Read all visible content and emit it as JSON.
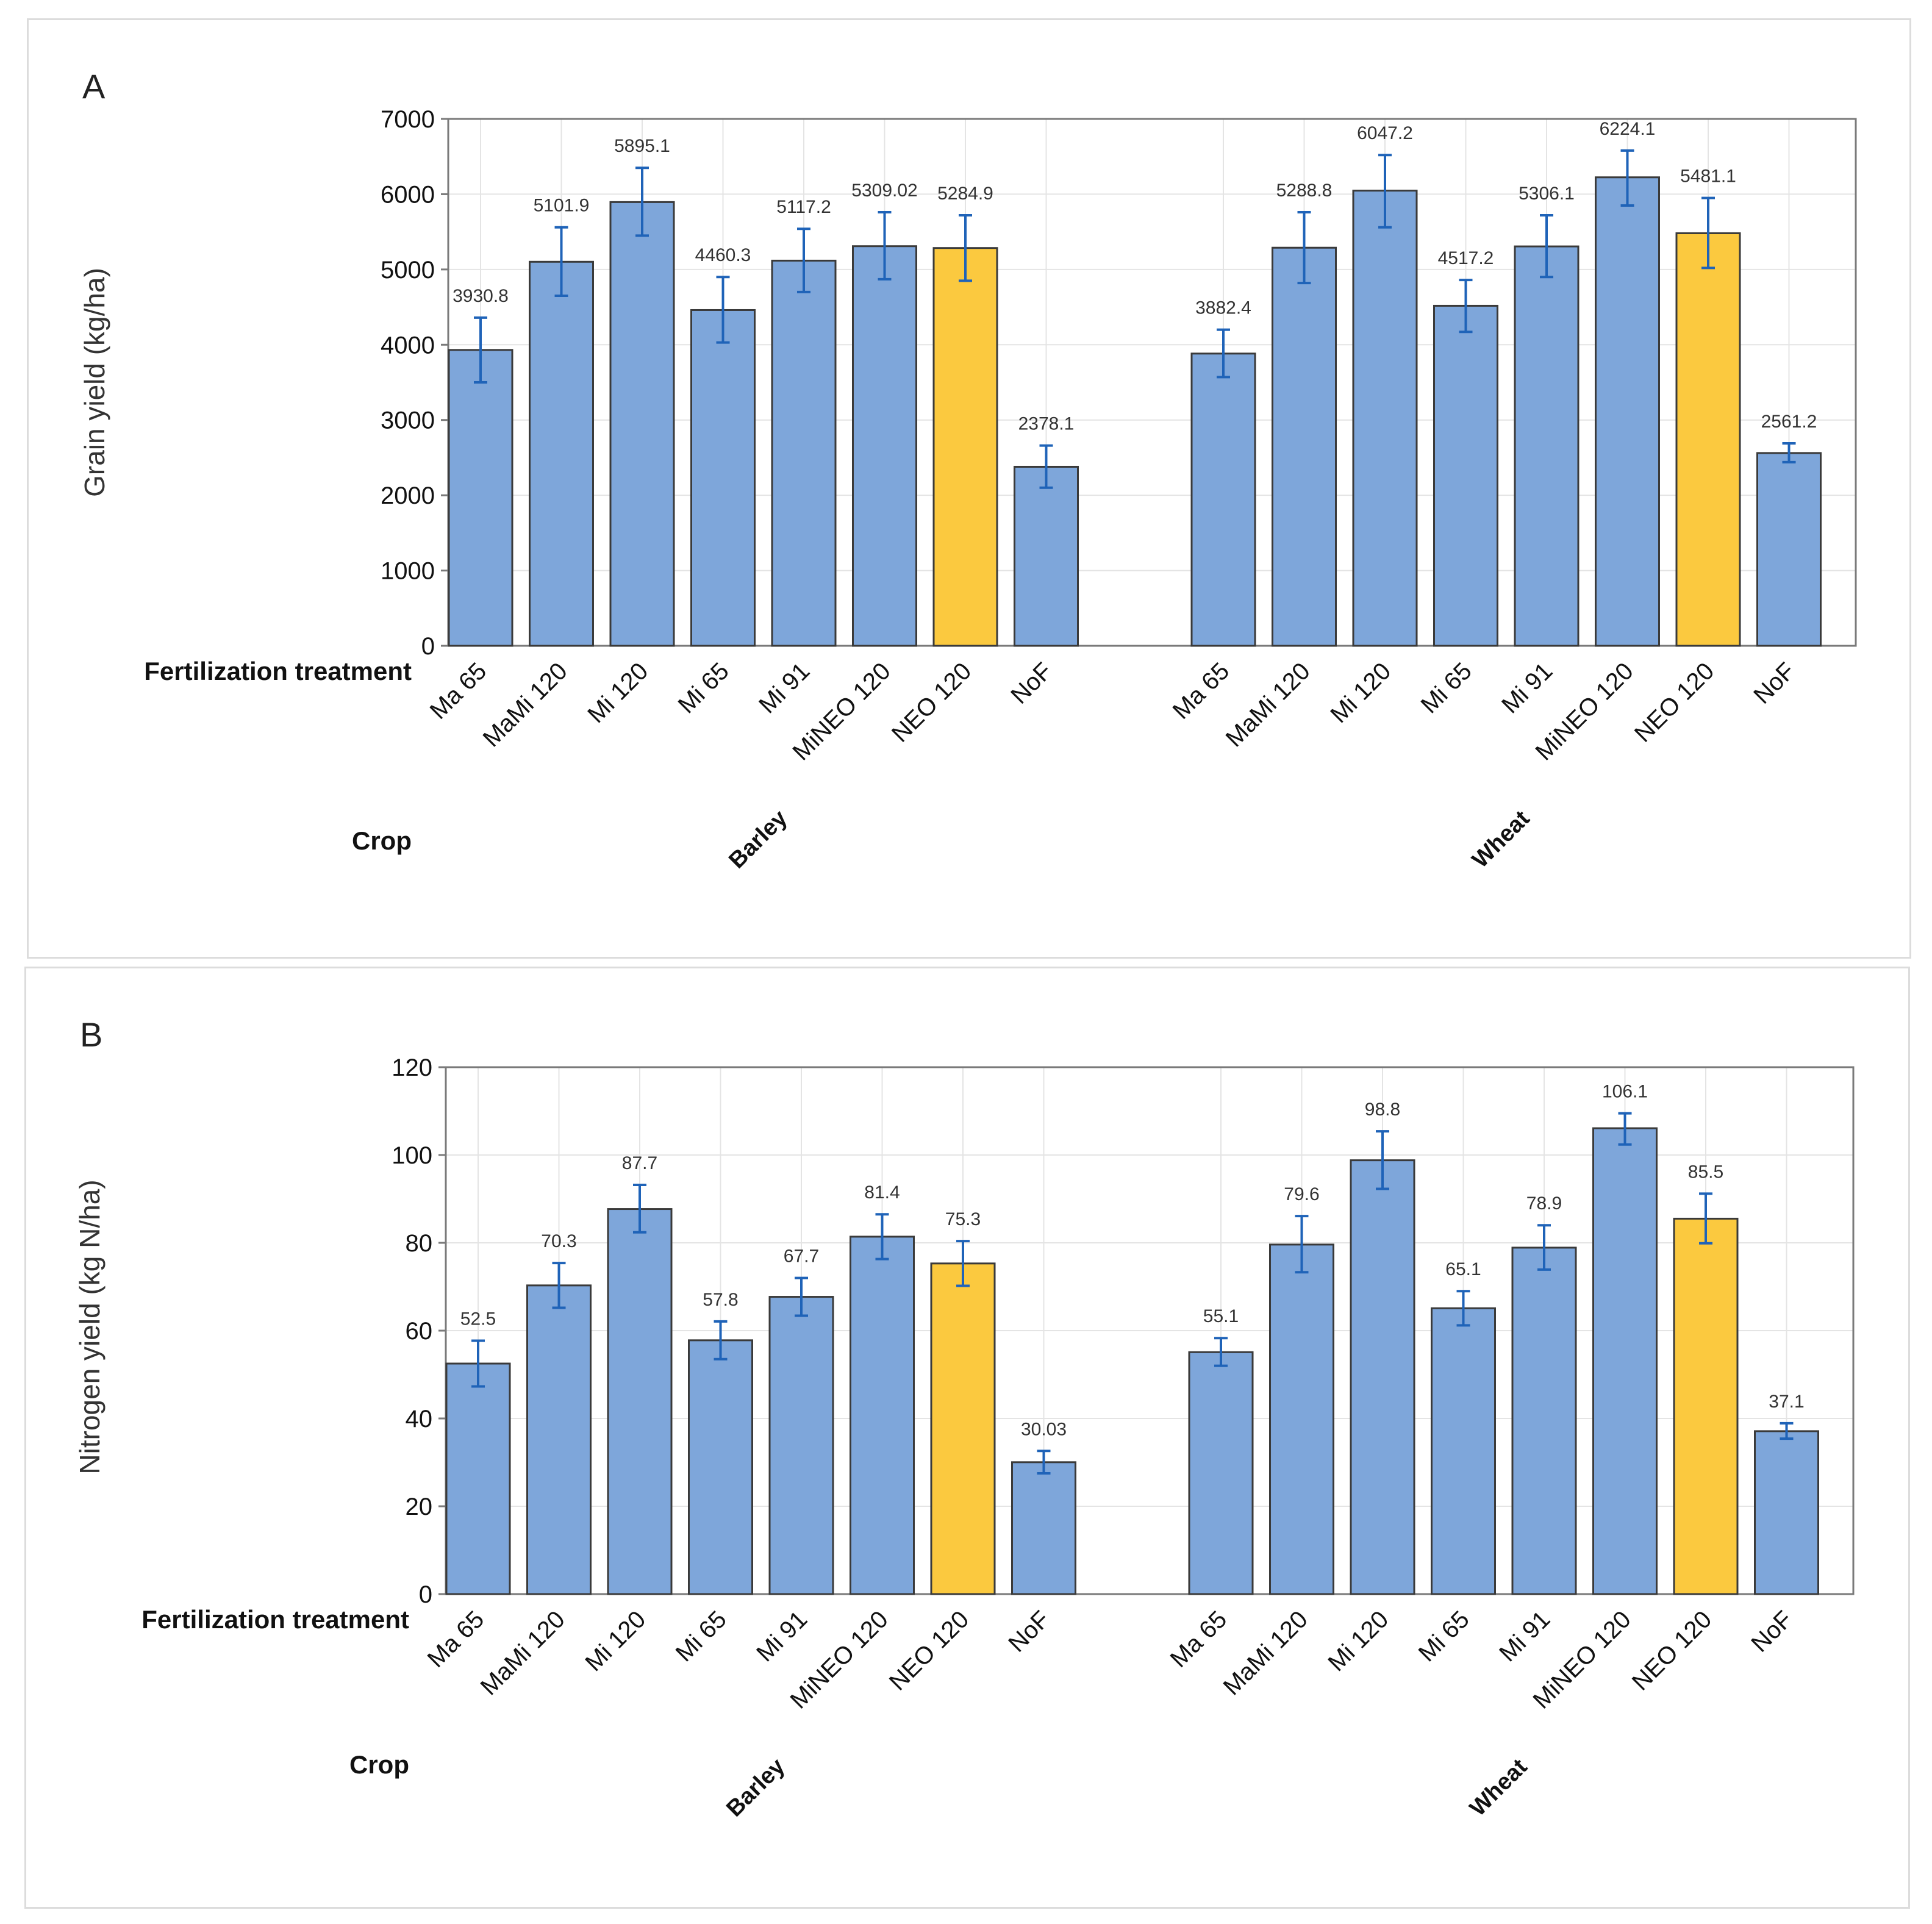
{
  "colors": {
    "bar_default": "#7ea6da",
    "bar_highlight": "#fbc93f",
    "bar_edge": "#3a3a3a",
    "error_bar": "#1f63b8",
    "grid": "#e4e4e4",
    "frame": "#7a7a7a"
  },
  "chart_data": [
    {
      "type": "bar",
      "panel_label": "A",
      "ylabel": "Grain yield (kg/ha)",
      "ylim": [
        0,
        7000
      ],
      "yticks": [
        0,
        1000,
        2000,
        3000,
        4000,
        5000,
        6000,
        7000
      ],
      "grid": true,
      "row_labels": {
        "treatment": "Fertilization treatment",
        "crop": "Crop"
      },
      "groups": [
        {
          "name": "Barley",
          "categories": [
            "Ma 65",
            "MaMi 120",
            "Mi 120",
            "Mi 65",
            "Mi 91",
            "MiNEO 120",
            "NEO 120",
            "NoF"
          ],
          "values": [
            3930.8,
            5101.9,
            5895.1,
            4460.3,
            5117.2,
            5309.02,
            5284.9,
            2378.1
          ],
          "labels": [
            "3930.8",
            "5101.9",
            "5895.1",
            "4460.3",
            "5117.2",
            "5309.02",
            "5284.9",
            "2378.1"
          ],
          "err_low": [
            3500,
            4650,
            5450,
            4030,
            4700,
            4870,
            4850,
            2100
          ],
          "err_high": [
            4360,
            5560,
            6350,
            4900,
            5540,
            5760,
            5720,
            2660
          ],
          "highlight": [
            false,
            false,
            false,
            false,
            false,
            false,
            true,
            false
          ]
        },
        {
          "name": "Wheat",
          "categories": [
            "Ma 65",
            "MaMi 120",
            "Mi 120",
            "Mi 65",
            "Mi 91",
            "MiNEO 120",
            "NEO 120",
            "NoF"
          ],
          "values": [
            3882.4,
            5288.8,
            6047.2,
            4517.2,
            5306.1,
            6224.1,
            5481.1,
            2561.2
          ],
          "labels": [
            "3882.4",
            "5288.8",
            "6047.2",
            "4517.2",
            "5306.1",
            "6224.1",
            "5481.1",
            "2561.2"
          ],
          "err_low": [
            3570,
            4820,
            5560,
            4170,
            4900,
            5850,
            5020,
            2440
          ],
          "err_high": [
            4200,
            5760,
            6520,
            4860,
            5720,
            6580,
            5950,
            2690
          ],
          "highlight": [
            false,
            false,
            false,
            false,
            false,
            false,
            true,
            false
          ]
        }
      ]
    },
    {
      "type": "bar",
      "panel_label": "B",
      "ylabel": "Nitrogen yield (kg N/ha)",
      "ylim": [
        0,
        120
      ],
      "yticks": [
        0,
        20,
        40,
        60,
        80,
        100,
        120
      ],
      "grid": true,
      "row_labels": {
        "treatment": "Fertilization treatment",
        "crop": "Crop"
      },
      "groups": [
        {
          "name": "Barley",
          "categories": [
            "Ma 65",
            "MaMi 120",
            "Mi 120",
            "Mi 65",
            "Mi 91",
            "MiNEO 120",
            "NEO 120",
            "NoF"
          ],
          "values": [
            52.5,
            70.3,
            87.7,
            57.8,
            67.7,
            81.4,
            75.3,
            30.03
          ],
          "labels": [
            "52.5",
            "70.3",
            "87.7",
            "57.8",
            "67.7",
            "81.4",
            "75.3",
            "30.03"
          ],
          "err_low": [
            47.3,
            65.2,
            82.4,
            53.5,
            63.4,
            76.3,
            70.2,
            27.5
          ],
          "err_high": [
            57.7,
            75.4,
            93.2,
            62.1,
            72.0,
            86.5,
            80.4,
            32.6
          ],
          "highlight": [
            false,
            false,
            false,
            false,
            false,
            false,
            true,
            false
          ]
        },
        {
          "name": "Wheat",
          "categories": [
            "Ma 65",
            "MaMi 120",
            "Mi 120",
            "Mi 65",
            "Mi 91",
            "MiNEO 120",
            "NEO 120",
            "NoF"
          ],
          "values": [
            55.1,
            79.6,
            98.8,
            65.1,
            78.9,
            106.1,
            85.5,
            37.1
          ],
          "labels": [
            "55.1",
            "79.6",
            "98.8",
            "65.1",
            "78.9",
            "106.1",
            "85.5",
            "37.1"
          ],
          "err_low": [
            52.0,
            73.3,
            92.3,
            61.2,
            73.9,
            102.4,
            79.9,
            35.4
          ],
          "err_high": [
            58.3,
            86.1,
            105.4,
            69.0,
            84.0,
            109.5,
            91.2,
            38.9
          ],
          "highlight": [
            false,
            false,
            false,
            false,
            false,
            false,
            true,
            false
          ]
        }
      ]
    }
  ]
}
